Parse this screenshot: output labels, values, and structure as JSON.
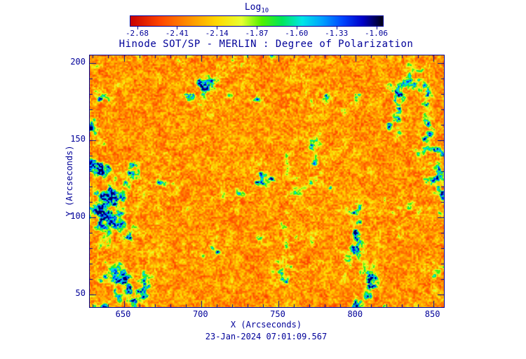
{
  "colors": {
    "axis": "#000099",
    "background": "#ffffff"
  },
  "colorbar": {
    "label_main": "Log",
    "label_sub": "10",
    "tick_labels": [
      "-2.68",
      "-2.41",
      "-2.14",
      "-1.87",
      "-1.60",
      "-1.33",
      "-1.06"
    ],
    "tick_values": [
      -2.68,
      -2.41,
      -2.14,
      -1.87,
      -1.6,
      -1.33,
      -1.06
    ],
    "range": [
      -2.73,
      -1.01
    ],
    "colormap": [
      [
        0.0,
        "#c80000"
      ],
      [
        0.12,
        "#ff4600"
      ],
      [
        0.24,
        "#ff9600"
      ],
      [
        0.34,
        "#ffd700"
      ],
      [
        0.44,
        "#e8ff32"
      ],
      [
        0.52,
        "#50f000"
      ],
      [
        0.6,
        "#00e65a"
      ],
      [
        0.68,
        "#00e6e6"
      ],
      [
        0.76,
        "#00a0ff"
      ],
      [
        0.84,
        "#0046ff"
      ],
      [
        0.92,
        "#0000c8"
      ],
      [
        1.0,
        "#000014"
      ]
    ]
  },
  "plot": {
    "title": "Hinode SOT/SP - MERLIN : Degree of Polarization",
    "xlabel": "X (Arcseconds)",
    "ylabel": "Y (Arcseconds)",
    "caption": "23-Jan-2024 07:01:09.567"
  },
  "chart_data": {
    "type": "heatmap",
    "title": "Hinode SOT/SP - MERLIN : Degree of Polarization",
    "colorbar_label": "Log10",
    "colorbar_tick_values": [
      -2.68,
      -2.41,
      -2.14,
      -1.87,
      -1.6,
      -1.33,
      -1.06
    ],
    "value_range_log10": [
      -2.73,
      -1.01
    ],
    "xlabel": "X (Arcseconds)",
    "ylabel": "Y (Arcseconds)",
    "x_ticks": [
      650,
      700,
      750,
      800,
      850
    ],
    "y_ticks": [
      50,
      100,
      150,
      200
    ],
    "x_range": [
      628,
      857
    ],
    "y_range": [
      42,
      205
    ],
    "minor_tick_interval": 10,
    "timestamp": "23-Jan-2024 07:01:09.567",
    "legend_position": "top-colorbar",
    "grid": false,
    "description": "Solar degree-of-polarization map: predominantly red/orange field (log10 DOP near -2.5) with speckled yellow texture and scattered irregular green/cyan/blue patches (log10 DOP up to about -1.1) concentrated in clusters across the field of view."
  }
}
